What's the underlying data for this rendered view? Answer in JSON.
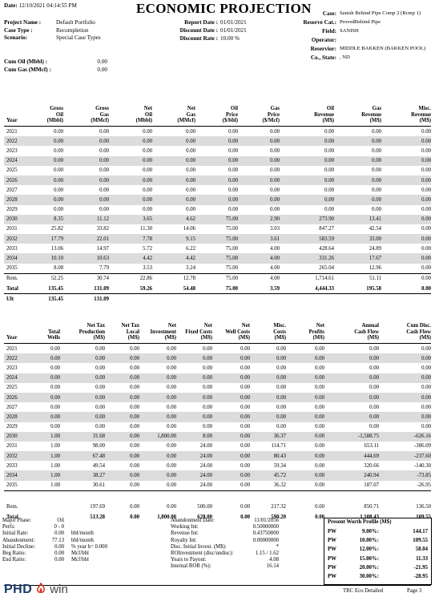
{
  "header": {
    "date_label": "Date:",
    "date_value": "12/10/2021 04:14:55 PM",
    "title": "ECONOMIC PROJECTION",
    "left": [
      {
        "label": "Project Name :",
        "value": "Default Portfolio"
      },
      {
        "label": "Case Type :",
        "value": "Recompletion"
      },
      {
        "label": "Scenario:",
        "value": "Special Case Types"
      }
    ],
    "mid": [
      {
        "label": "Report Date :",
        "value": "01/01/2021"
      },
      {
        "label": "Discount Date :",
        "value": "01/01/2021"
      },
      {
        "label": "Discount Rate :",
        "value": "10.00 %"
      }
    ],
    "right": [
      {
        "label": "Case:",
        "value": "Sanish Behind Pipe Comp 2 (Rcmp 1)"
      },
      {
        "label": "Reserve Cat.:",
        "value": "ProvedBehind Pipe"
      },
      {
        "label": "Field:",
        "value": "SANISH"
      },
      {
        "label": "Operator:",
        "value": ""
      },
      {
        "label": "Reservior:",
        "value": "MIDDLE BAKKEN (BAKKEN POOL)"
      },
      {
        "label": "Co., State:",
        "value": ", ND"
      }
    ],
    "cum": [
      {
        "label": "Cum Oil (Mbbl) :",
        "value": "0.00"
      },
      {
        "label": "Cum Gas (MMcf) :",
        "value": "0.00"
      }
    ]
  },
  "table1": {
    "headers": [
      [
        "Year"
      ],
      [
        "Gross",
        "Oil",
        "(Mbbl)"
      ],
      [
        "Gross",
        "Gas",
        "(MMcf)"
      ],
      [
        "Net",
        "Oil",
        "(Mbbl)"
      ],
      [
        "Net",
        "Gas",
        "(MMcf)"
      ],
      [
        "Oil",
        "Price",
        "($/bbl)"
      ],
      [
        "Gas",
        "Price",
        "($/Mcf)"
      ],
      [
        "Oil",
        "Revenue",
        "(M$)"
      ],
      [
        "Gas",
        "Revenue",
        "(M$)"
      ],
      [
        "Misc.",
        "Revenue",
        "(M$)"
      ]
    ],
    "rows": [
      [
        "2021",
        "0.00",
        "0.00",
        "0.00",
        "0.00",
        "0.00",
        "0.00",
        "0.00",
        "0.00",
        "0.00"
      ],
      [
        "2022",
        "0.00",
        "0.00",
        "0.00",
        "0.00",
        "0.00",
        "0.00",
        "0.00",
        "0.00",
        "0.00"
      ],
      [
        "2023",
        "0.00",
        "0.00",
        "0.00",
        "0.00",
        "0.00",
        "0.00",
        "0.00",
        "0.00",
        "0.00"
      ],
      [
        "2024",
        "0.00",
        "0.00",
        "0.00",
        "0.00",
        "0.00",
        "0.00",
        "0.00",
        "0.00",
        "0.00"
      ],
      [
        "2025",
        "0.00",
        "0.00",
        "0.00",
        "0.00",
        "0.00",
        "0.00",
        "0.00",
        "0.00",
        "0.00"
      ],
      [
        "2026",
        "0.00",
        "0.00",
        "0.00",
        "0.00",
        "0.00",
        "0.00",
        "0.00",
        "0.00",
        "0.00"
      ],
      [
        "2027",
        "0.00",
        "0.00",
        "0.00",
        "0.00",
        "0.00",
        "0.00",
        "0.00",
        "0.00",
        "0.00"
      ],
      [
        "2028",
        "0.00",
        "0.00",
        "0.00",
        "0.00",
        "0.00",
        "0.00",
        "0.00",
        "0.00",
        "0.00"
      ],
      [
        "2029",
        "0.00",
        "0.00",
        "0.00",
        "0.00",
        "0.00",
        "0.00",
        "0.00",
        "0.00",
        "0.00"
      ],
      [
        "2030",
        "8.35",
        "11.12",
        "3.65",
        "4.62",
        "75.00",
        "2.90",
        "273.90",
        "13.41",
        "0.00"
      ],
      [
        "2031",
        "25.82",
        "33.82",
        "11.30",
        "14.06",
        "75.00",
        "3.03",
        "847.27",
        "42.54",
        "0.00"
      ],
      [
        "2032",
        "17.79",
        "22.01",
        "7.78",
        "9.15",
        "75.00",
        "3.61",
        "583.59",
        "33.00",
        "0.00"
      ],
      [
        "2033",
        "13.06",
        "14.97",
        "5.72",
        "6.22",
        "75.00",
        "4.00",
        "428.64",
        "24.89",
        "0.00"
      ],
      [
        "2034",
        "10.10",
        "10.63",
        "4.42",
        "4.42",
        "75.00",
        "4.00",
        "331.26",
        "17.67",
        "0.00"
      ],
      [
        "2035",
        "8.08",
        "7.79",
        "3.53",
        "3.24",
        "75.00",
        "4.00",
        "265.04",
        "12.96",
        "0.00"
      ]
    ],
    "rem": [
      "Rem.",
      "52.25",
      "30.74",
      "22.86",
      "12.78",
      "75.00",
      "4.00",
      "1,714.61",
      "51.11",
      "0.00"
    ],
    "total": [
      "Total",
      "135.45",
      "131.09",
      "59.26",
      "54.48",
      "75.00",
      "3.59",
      "4,444.33",
      "195.58",
      "0.00"
    ],
    "ult": [
      "Ult",
      "135.45",
      "131.09"
    ]
  },
  "table2": {
    "headers": [
      [
        "Year"
      ],
      [
        "Total",
        "Wells"
      ],
      [
        "Net Tax",
        "Production",
        "(M$)"
      ],
      [
        "Net Tax",
        "Local",
        "(M$)"
      ],
      [
        "Net",
        "Investment",
        "(M$)"
      ],
      [
        "Net",
        "Fixed Costs",
        "(M$)"
      ],
      [
        "Net",
        "Well Costs",
        "(M$)"
      ],
      [
        "Misc.",
        "Costs",
        "(M$)"
      ],
      [
        "Net",
        "Profits",
        "(M$)"
      ],
      [
        "Annual",
        "Cash Flow",
        "(M$)"
      ],
      [
        "Cum Disc.",
        "Cash Flow",
        "(M$)"
      ]
    ],
    "rows": [
      [
        "2021",
        "0.00",
        "0.00",
        "0.00",
        "0.00",
        "0.00",
        "0.00",
        "0.00",
        "0.00",
        "0.00",
        "0.00"
      ],
      [
        "2022",
        "0.00",
        "0.00",
        "0.00",
        "0.00",
        "0.00",
        "0.00",
        "0.00",
        "0.00",
        "0.00",
        "0.00"
      ],
      [
        "2023",
        "0.00",
        "0.00",
        "0.00",
        "0.00",
        "0.00",
        "0.00",
        "0.00",
        "0.00",
        "0.00",
        "0.00"
      ],
      [
        "2024",
        "0.00",
        "0.00",
        "0.00",
        "0.00",
        "0.00",
        "0.00",
        "0.00",
        "0.00",
        "0.00",
        "0.00"
      ],
      [
        "2025",
        "0.00",
        "0.00",
        "0.00",
        "0.00",
        "0.00",
        "0.00",
        "0.00",
        "0.00",
        "0.00",
        "0.00"
      ],
      [
        "2026",
        "0.00",
        "0.00",
        "0.00",
        "0.00",
        "0.00",
        "0.00",
        "0.00",
        "0.00",
        "0.00",
        "0.00"
      ],
      [
        "2027",
        "0.00",
        "0.00",
        "0.00",
        "0.00",
        "0.00",
        "0.00",
        "0.00",
        "0.00",
        "0.00",
        "0.00"
      ],
      [
        "2028",
        "0.00",
        "0.00",
        "0.00",
        "0.00",
        "0.00",
        "0.00",
        "0.00",
        "0.00",
        "0.00",
        "0.00"
      ],
      [
        "2029",
        "0.00",
        "0.00",
        "0.00",
        "0.00",
        "0.00",
        "0.00",
        "0.00",
        "0.00",
        "0.00",
        "0.00"
      ],
      [
        "2030",
        "1.00",
        "31.68",
        "0.00",
        "1,800.00",
        "8.00",
        "0.00",
        "36.37",
        "0.00",
        "-1,588.75",
        "-626.16"
      ],
      [
        "2031",
        "1.00",
        "98.00",
        "0.00",
        "0.00",
        "24.00",
        "0.00",
        "114.71",
        "0.00",
        "653.11",
        "-386.09"
      ],
      [
        "2032",
        "1.00",
        "67.48",
        "0.00",
        "0.00",
        "24.00",
        "0.00",
        "80.43",
        "0.00",
        "444.69",
        "-237.60"
      ],
      [
        "2033",
        "1.00",
        "49.54",
        "0.00",
        "0.00",
        "24.00",
        "0.00",
        "59.34",
        "0.00",
        "320.66",
        "-140.30"
      ],
      [
        "2034",
        "1.00",
        "38.27",
        "0.00",
        "0.00",
        "24.00",
        "0.00",
        "45.72",
        "0.00",
        "240.94",
        "-73.85"
      ],
      [
        "2035",
        "1.00",
        "30.61",
        "0.00",
        "0.00",
        "24.00",
        "0.00",
        "36.32",
        "0.00",
        "187.07",
        "-26.95"
      ]
    ],
    "rem": [
      "Rem.",
      "",
      "197.69",
      "0.00",
      "0.00",
      "500.00",
      "0.00",
      "217.32",
      "0.00",
      "850.71",
      "136.50"
    ],
    "total": [
      "Total",
      "",
      "513.28",
      "0.00",
      "1,800.00",
      "628.00",
      "0.00",
      "590.20",
      "0.00",
      "1,108.43",
      "109.55"
    ]
  },
  "footer_left": [
    {
      "label": "Major Phase:",
      "v1": "Oil",
      "v2": ""
    },
    {
      "label": "Perfs:",
      "v1": "0 - 0",
      "v2": ""
    },
    {
      "label": "Initial Rate:",
      "v1": "0.00",
      "v2": "bbl/month"
    },
    {
      "label": "Abandonment:",
      "v1": "77.13",
      "v2": "bbl/month"
    },
    {
      "label": "Initial Decline:",
      "v1": "0.00",
      "v2": "% year     b= 0.000"
    },
    {
      "label": "Beg Ratio:",
      "v1": "0.00",
      "v2": "Mcf/bbl"
    },
    {
      "label": "End Ratio:",
      "v1": "0.00",
      "v2": "Mcf/bbl"
    }
  ],
  "footer_mid": [
    {
      "label": "Abandonment Date:",
      "value": "11/01/2056"
    },
    {
      "label": "Working Int:",
      "value": "0.50000000"
    },
    {
      "label": "Revenue Int:",
      "value": "0.43750000"
    },
    {
      "label": "Royalty Int:",
      "value": "0.00000000"
    },
    {
      "label": "Disc. Initial Invest. (M$):",
      "value": "*"
    },
    {
      "label": "ROInvestment (disc/undisc):",
      "value": "1.15 / 1.62"
    },
    {
      "label": "Years to Payout:",
      "value": "4.08"
    },
    {
      "label": "Internal ROR (%):",
      "value": "16.14"
    }
  ],
  "pw": {
    "title": "Present Worth Profile (M$)",
    "rows": [
      {
        "label": "PW",
        "rate": "9.00%:",
        "value": "144.17"
      },
      {
        "label": "PW",
        "rate": "10.00%:",
        "value": "109.55"
      },
      {
        "label": "PW",
        "rate": "12.00%:",
        "value": "58.04"
      },
      {
        "label": "PW",
        "rate": "15.00%:",
        "value": "11.33"
      },
      {
        "label": "PW",
        "rate": "20.00%:",
        "value": "-21.95"
      },
      {
        "label": "PW",
        "rate": "30.00%:",
        "value": "-28.95"
      }
    ]
  },
  "bottom": {
    "logo_phd": "PHD",
    "logo_win": "win",
    "report_name": "TRC Eco Detailed",
    "page": "Page 3"
  }
}
